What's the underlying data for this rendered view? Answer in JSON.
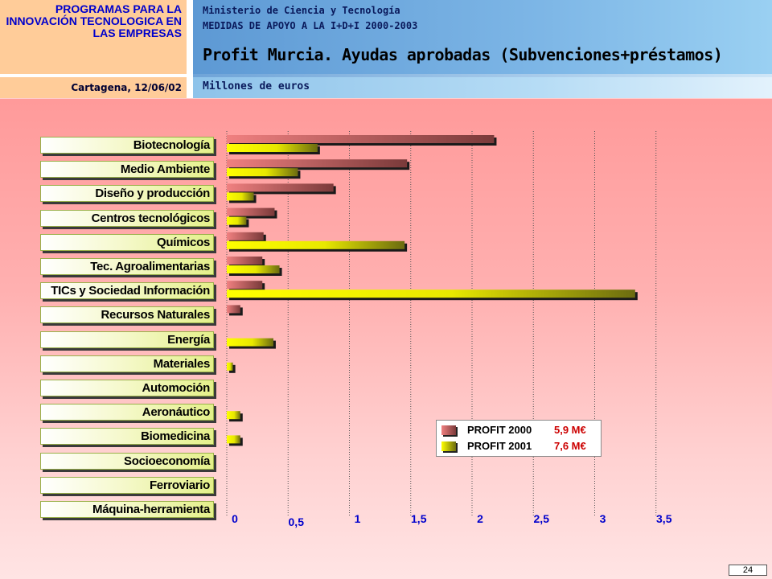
{
  "header": {
    "program": "PROGRAMAS PARA LA INNOVACIÓN TECNOLOGICA EN LAS EMPRESAS",
    "location_date": "Cartagena, 12/06/02",
    "ministry": "Ministerio de Ciencia y Tecnología",
    "measures": "MEDIDAS DE APOYO A LA I+D+I 2000-2003",
    "title": "Profit Murcia. Ayudas aprobadas (Subvenciones+préstamos)",
    "subtitle": "Millones de euros"
  },
  "colors": {
    "profit2000": "#c0505a",
    "profit2001": "#ffff00",
    "grid": "#555555",
    "tick_label": "#0000cc"
  },
  "chart_data": {
    "type": "bar",
    "orientation": "horizontal",
    "categories": [
      "Biotecnología",
      "Medio Ambiente",
      "Diseño y producción",
      "Centros tecnológicos",
      "Químicos",
      "Tec. Agroalimentarias",
      "TICs y Sociedad Información",
      "Recursos Naturales",
      "Energía",
      "Materiales",
      "Automoción",
      "Aeronáutico",
      "Biomedicina",
      "Socioeconomía",
      "Ferroviario",
      "Máquina-herramienta"
    ],
    "series": [
      {
        "name": "PROFIT 2000",
        "total": "5,9 M€",
        "values": [
          2.18,
          1.47,
          0.87,
          0.39,
          0.3,
          0.29,
          0.29,
          0.11,
          0,
          0,
          0,
          0,
          0,
          0,
          0,
          0
        ]
      },
      {
        "name": "PROFIT 2001",
        "total": "7,6 M€",
        "values": [
          0.74,
          0.58,
          0.22,
          0.16,
          1.45,
          0.43,
          3.33,
          0,
          0.38,
          0.05,
          0,
          0.11,
          0.11,
          0,
          0,
          0
        ]
      }
    ],
    "xlim": [
      0,
      3.5
    ],
    "x_ticks": [
      0,
      0.5,
      1,
      1.5,
      2,
      2.5,
      3,
      3.5
    ],
    "x_tick_labels": [
      "0",
      "0,5",
      "1",
      "1,5",
      "2",
      "2,5",
      "3",
      "3,5"
    ],
    "grid": true,
    "legend_position": "bottom-right"
  },
  "page_number": "24"
}
